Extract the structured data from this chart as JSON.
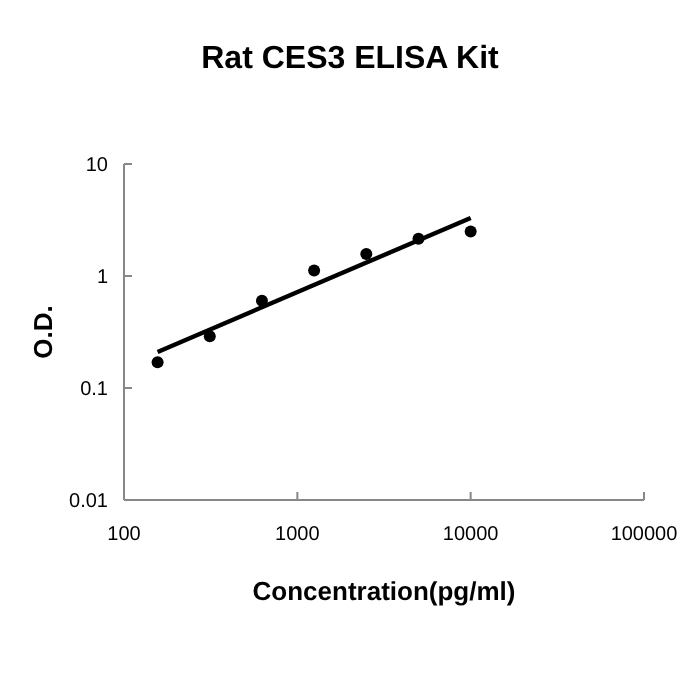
{
  "chart_data": {
    "type": "scatter",
    "title": "Rat CES3 ELISA Kit",
    "xlabel": "Concentration(pg/ml)",
    "ylabel": "O.D.",
    "log": "xy",
    "xlim": [
      100,
      100000
    ],
    "xticks": [
      100,
      1000,
      10000,
      100000
    ],
    "ylim": [
      0.01,
      10
    ],
    "yticks": [
      0.01,
      0.1,
      1,
      10
    ],
    "grid": false,
    "series": [
      {
        "color": "#000000",
        "marker": "circle",
        "x": [
          156.25,
          312.5,
          625,
          1250,
          2500,
          5000,
          10000
        ],
        "values": [
          0.17,
          0.29,
          0.6,
          1.12,
          1.57,
          2.15,
          2.5
        ]
      },
      {
        "type": "line",
        "color": "#000000",
        "line_style": "solid",
        "x": [
          156.25,
          10000
        ],
        "values": [
          0.21,
          3.3
        ]
      }
    ]
  }
}
